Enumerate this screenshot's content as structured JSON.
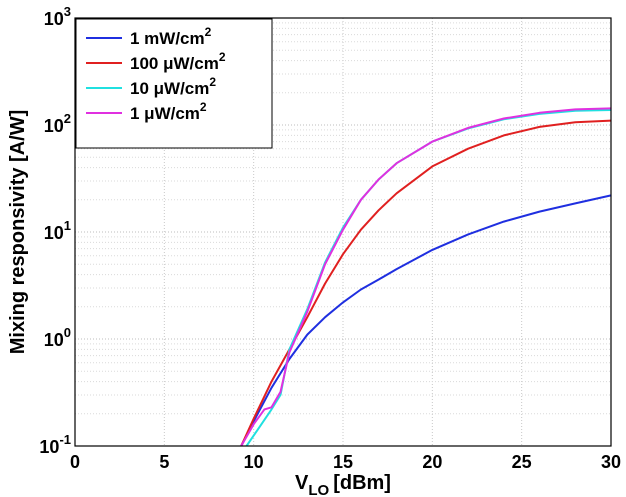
{
  "chart_data": {
    "type": "line",
    "xlabel": "V",
    "xlabel_sub": "LO",
    "xlabel_unit": "[dBm]",
    "ylabel": "Mixing responsivity [A/W]",
    "xlim": [
      0,
      30
    ],
    "ylim": [
      0.1,
      1000
    ],
    "yscale": "log",
    "grid": true,
    "legend_position": "top-left",
    "x_ticks": [
      "0",
      "5",
      "10",
      "15",
      "20",
      "25",
      "30"
    ],
    "y_ticks": [
      {
        "base": "10",
        "exp": "-1"
      },
      {
        "base": "10",
        "exp": "0"
      },
      {
        "base": "10",
        "exp": "1"
      },
      {
        "base": "10",
        "exp": "2"
      },
      {
        "base": "10",
        "exp": "3"
      }
    ],
    "series": [
      {
        "name": "1 mW/cm",
        "name_sup": "2",
        "color": "#1f2fe0",
        "x": [
          9.3,
          10,
          11,
          12,
          13,
          14,
          15,
          16,
          17,
          18,
          20,
          22,
          24,
          26,
          28,
          30
        ],
        "y": [
          0.1,
          0.17,
          0.35,
          0.65,
          1.1,
          1.6,
          2.2,
          2.9,
          3.6,
          4.5,
          6.8,
          9.5,
          12.5,
          15.5,
          18.5,
          22
        ]
      },
      {
        "name": "100 μW/cm",
        "name_sup": "2",
        "color": "#e02020",
        "x": [
          9.3,
          10,
          11,
          12,
          13,
          14,
          15,
          16,
          17,
          18,
          20,
          22,
          24,
          26,
          28,
          30
        ],
        "y": [
          0.1,
          0.18,
          0.4,
          0.8,
          1.6,
          3.3,
          6.2,
          10.5,
          16,
          23,
          41,
          60,
          80,
          96,
          106,
          110
        ]
      },
      {
        "name": "10 μW/cm",
        "name_sup": "2",
        "color": "#20e0e0",
        "x": [
          9.6,
          10.2,
          11,
          11.5,
          12,
          13,
          14,
          15,
          16,
          17,
          18,
          20,
          22,
          24,
          26,
          28,
          30
        ],
        "y": [
          0.1,
          0.14,
          0.22,
          0.3,
          0.8,
          1.9,
          5.2,
          11,
          20,
          31,
          44,
          70,
          93,
          113,
          127,
          136,
          138
        ]
      },
      {
        "name": "1 μW/cm",
        "name_sup": "2",
        "color": "#e030e0",
        "x": [
          9.3,
          10,
          10.6,
          11,
          11.5,
          12,
          13,
          14,
          15,
          16,
          17,
          18,
          20,
          22,
          24,
          26,
          28,
          30
        ],
        "y": [
          0.1,
          0.16,
          0.22,
          0.23,
          0.32,
          0.75,
          1.8,
          5,
          10.5,
          20,
          31,
          44,
          70,
          94,
          115,
          130,
          140,
          143
        ]
      }
    ]
  }
}
